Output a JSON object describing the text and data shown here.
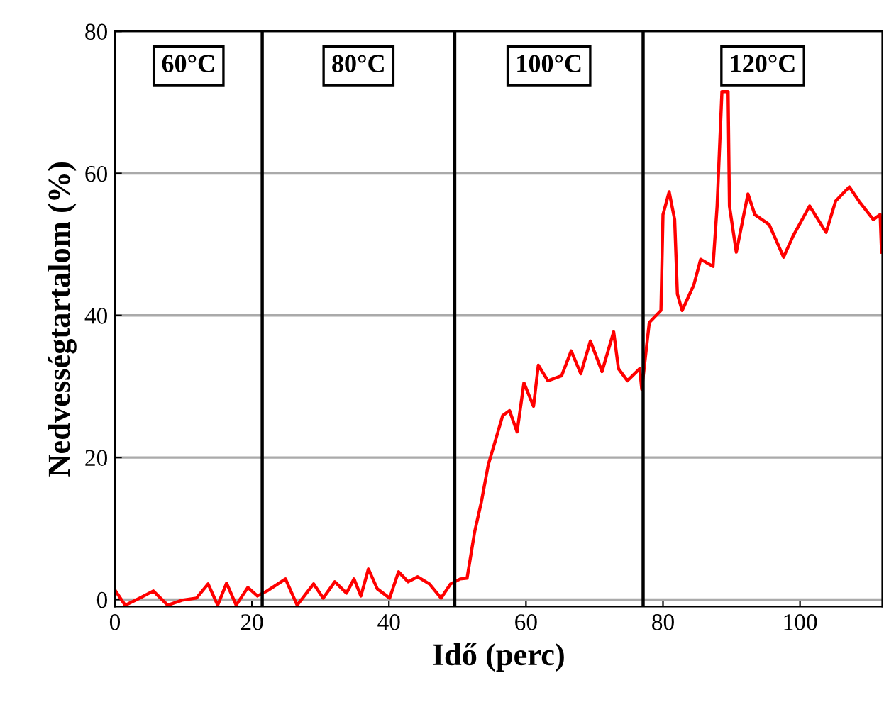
{
  "chart_data": {
    "type": "line",
    "xlabel": "Idő (perc)",
    "ylabel": "Nedvességtartalom (%)",
    "xlim": [
      0,
      112
    ],
    "ylim": [
      -1,
      80
    ],
    "xticks": [
      0,
      20,
      40,
      60,
      80,
      100
    ],
    "yticks": [
      0,
      20,
      40,
      60,
      80
    ],
    "grid": "y",
    "marker": "none",
    "line_style": "solid",
    "series": [
      {
        "color": "#ff0000",
        "x": [
          0.1,
          1.5,
          3.6,
          5.6,
          7.7,
          9.8,
          11.9,
          13.6,
          15,
          16.3,
          17.7,
          19.4,
          20.8,
          22.2,
          24.9,
          26.6,
          29,
          30.4,
          32.1,
          33.8,
          34.9,
          35.9,
          37,
          38.3,
          40.1,
          41.4,
          42.8,
          44.2,
          45.9,
          47.6,
          49,
          50.4,
          51.4,
          52.5,
          53.5,
          54.5,
          55.6,
          56.6,
          57.6,
          58.7,
          59.7,
          61.1,
          61.8,
          63.2,
          65.2,
          66.6,
          68,
          69.4,
          71.1,
          72.8,
          73.5,
          74.8,
          76.6,
          76.9,
          78,
          79.7,
          80,
          80.9,
          81.7,
          82.1,
          82.8,
          84.5,
          85.5,
          87.3,
          87.9,
          88.6,
          89.5,
          89.7,
          90.7,
          92.4,
          93.4,
          95.5,
          97.6,
          99,
          101.4,
          103.8,
          105.2,
          107.2,
          108.6,
          110.7,
          111.7,
          111.9
        ],
        "values": [
          1.2,
          -0.8,
          0.2,
          1.2,
          -0.8,
          -0.1,
          0.2,
          2.2,
          -0.8,
          2.3,
          -0.8,
          1.7,
          0.5,
          1.2,
          2.9,
          -0.8,
          2.2,
          0.2,
          2.5,
          0.9,
          2.9,
          0.5,
          4.3,
          1.5,
          0.2,
          3.9,
          2.5,
          3.2,
          2.2,
          0.2,
          2.2,
          2.9,
          3,
          9.5,
          13.8,
          19,
          22.6,
          25.9,
          26.6,
          23.6,
          30.5,
          27.2,
          33,
          30.8,
          31.5,
          35,
          31.8,
          36.4,
          32.1,
          37.7,
          32.5,
          30.8,
          32.5,
          29.6,
          39,
          40.7,
          54.2,
          57.4,
          53.5,
          43,
          40.7,
          44.3,
          47.9,
          46.9,
          55.4,
          71.5,
          71.5,
          55.4,
          48.9,
          57.1,
          54.2,
          52.8,
          48.2,
          51.2,
          55.4,
          51.7,
          56.1,
          58.1,
          56.1,
          53.5,
          54.2,
          48.9
        ]
      }
    ],
    "ref_lines": [
      {
        "axis": "x",
        "value": 21.5,
        "color": "#000000"
      },
      {
        "axis": "x",
        "value": 49.6,
        "color": "#000000"
      },
      {
        "axis": "x",
        "value": 77.1,
        "color": "#000000"
      }
    ],
    "annotations": [
      "60°C",
      "80°C",
      "100°C",
      "120°C"
    ]
  }
}
